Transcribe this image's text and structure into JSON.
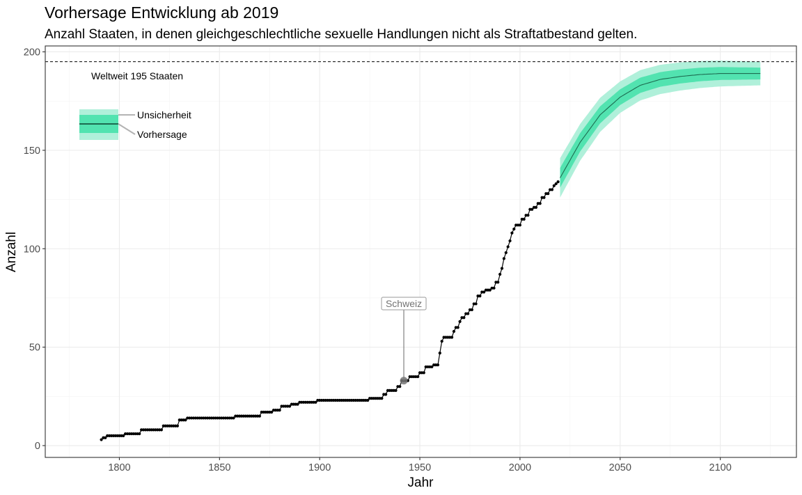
{
  "chart_data": {
    "type": "line",
    "title": "Vorhersage Entwicklung ab 2019",
    "subtitle": "Anzahl Staaten, in denen gleichgeschlechtliche sexuelle Handlungen nicht als Straftatbestand gelten.",
    "xlabel": "Jahr",
    "ylabel": "Anzahl",
    "xlim": [
      1763,
      2138
    ],
    "ylim": [
      -6,
      203
    ],
    "x_ticks": [
      1800,
      1850,
      1900,
      1950,
      2000,
      2050,
      2100
    ],
    "x_tick_labels": [
      "1800",
      "1850",
      "1900",
      "1950",
      "2000",
      "2050",
      "2100"
    ],
    "y_ticks": [
      0,
      50,
      100,
      150,
      200
    ],
    "y_tick_labels": [
      "0",
      "50",
      "100",
      "150",
      "200"
    ],
    "grid": true,
    "reference_line": {
      "y": 195,
      "label": "Weltweit 195 Staaten",
      "style": "dashed"
    },
    "historical": {
      "style": "step line with point markers",
      "color": "#000000",
      "steps": [
        [
          1791,
          3
        ],
        [
          1792,
          4
        ],
        [
          1794,
          5
        ],
        [
          1803,
          6
        ],
        [
          1811,
          8
        ],
        [
          1822,
          10
        ],
        [
          1830,
          13
        ],
        [
          1834,
          14
        ],
        [
          1858,
          15
        ],
        [
          1871,
          17
        ],
        [
          1877,
          18
        ],
        [
          1881,
          20
        ],
        [
          1886,
          21
        ],
        [
          1890,
          22
        ],
        [
          1899,
          23
        ],
        [
          1925,
          24
        ],
        [
          1932,
          26
        ],
        [
          1934,
          28
        ],
        [
          1939,
          30
        ],
        [
          1941,
          33
        ],
        [
          1945,
          35
        ],
        [
          1950,
          37
        ],
        [
          1953,
          40
        ],
        [
          1957,
          41
        ],
        [
          1960,
          47
        ],
        [
          1961,
          53
        ],
        [
          1962,
          55
        ],
        [
          1967,
          58
        ],
        [
          1968,
          60
        ],
        [
          1970,
          63
        ],
        [
          1971,
          65
        ],
        [
          1973,
          67
        ],
        [
          1975,
          69
        ],
        [
          1977,
          72
        ],
        [
          1979,
          76
        ],
        [
          1981,
          78
        ],
        [
          1983,
          79
        ],
        [
          1986,
          80
        ],
        [
          1988,
          83
        ],
        [
          1990,
          87
        ],
        [
          1991,
          90
        ],
        [
          1992,
          95
        ],
        [
          1993,
          98
        ],
        [
          1994,
          101
        ],
        [
          1995,
          104
        ],
        [
          1996,
          108
        ],
        [
          1997,
          110
        ],
        [
          1998,
          112
        ],
        [
          2001,
          115
        ],
        [
          2003,
          117
        ],
        [
          2005,
          120
        ],
        [
          2007,
          121
        ],
        [
          2009,
          123
        ],
        [
          2011,
          126
        ],
        [
          2013,
          128
        ],
        [
          2015,
          130
        ],
        [
          2017,
          132
        ],
        [
          2018,
          133
        ],
        [
          2019,
          134
        ]
      ]
    },
    "forecast": {
      "start": 2020,
      "end": 2120,
      "forecast_values": [
        [
          2020,
          136
        ],
        [
          2030,
          154
        ],
        [
          2040,
          168
        ],
        [
          2050,
          177
        ],
        [
          2060,
          183
        ],
        [
          2070,
          186
        ],
        [
          2080,
          187.5
        ],
        [
          2090,
          188.5
        ],
        [
          2100,
          189
        ],
        [
          2110,
          189
        ],
        [
          2120,
          189
        ]
      ],
      "inner_band_halfwidth": [
        [
          2020,
          5
        ],
        [
          2050,
          4
        ],
        [
          2120,
          3
        ]
      ],
      "outer_band_halfwidth": [
        [
          2020,
          10
        ],
        [
          2050,
          8
        ],
        [
          2120,
          6
        ]
      ],
      "line_color": "#1d6b50",
      "inner_band_color": "#52e3b0",
      "outer_band_color": "#b0f0da"
    },
    "highlight": {
      "label": "Schweiz",
      "x": 1942,
      "y": 33
    },
    "legend": {
      "placement": "top-left",
      "uncertainty_label": "Unsicherheit",
      "forecast_label": "Vorhersage"
    }
  }
}
